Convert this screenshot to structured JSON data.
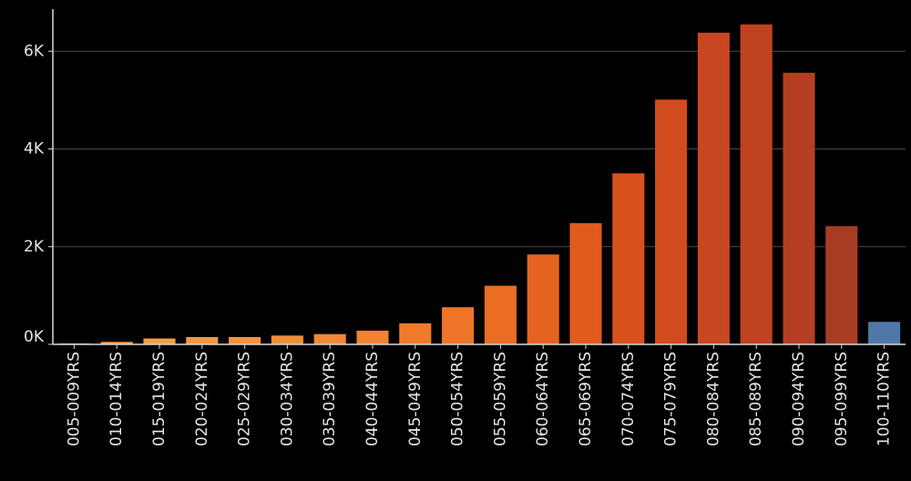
{
  "chart_data": {
    "type": "bar",
    "title": "",
    "xlabel": "",
    "ylabel": "",
    "categories": [
      "005-009YRS",
      "010-014YRS",
      "015-019YRS",
      "020-024YRS",
      "025-029YRS",
      "030-034YRS",
      "035-039YRS",
      "040-044YRS",
      "045-049YRS",
      "050-054YRS",
      "055-059YRS",
      "060-064YRS",
      "065-069YRS",
      "070-074YRS",
      "075-079YRS",
      "080-084YRS",
      "085-089YRS",
      "090-094YRS",
      "095-099YRS",
      "100-110YRS"
    ],
    "values": [
      10,
      50,
      120,
      150,
      150,
      180,
      210,
      280,
      430,
      760,
      1200,
      1840,
      2480,
      3500,
      5010,
      6380,
      6550,
      5560,
      2420,
      460
    ],
    "bar_colors": [
      "#f8a64a",
      "#f8a148",
      "#f79c44",
      "#f69740",
      "#f5923c",
      "#f48d38",
      "#f38834",
      "#f28330",
      "#f07c2b",
      "#ee7527",
      "#ea6d23",
      "#e5641f",
      "#df5b1e",
      "#d8521e",
      "#d14b1f",
      "#c84620",
      "#c04221",
      "#b53f22",
      "#a83c23",
      "#4e79a7"
    ],
    "ylim": [
      0,
      6900
    ],
    "yticks": [
      0,
      2000,
      4000,
      6000
    ],
    "ytick_labels": [
      "0K",
      "2K",
      "4K",
      "6K"
    ],
    "grid": true,
    "legend": "none"
  }
}
